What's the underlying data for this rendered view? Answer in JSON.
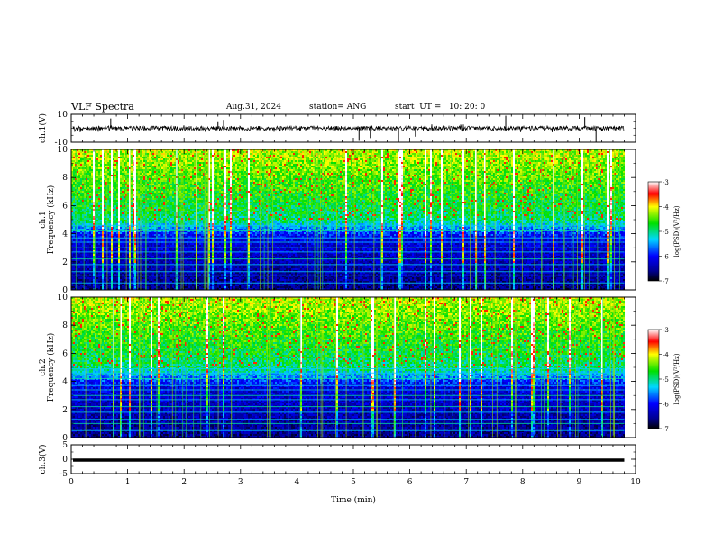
{
  "header": {
    "title": "VLF Spectra",
    "date": "Aug.31, 2024",
    "station": "station= ANG",
    "start": "start  UT =   10: 20: 0"
  },
  "chart_data": [
    {
      "type": "line",
      "panel": "ch1-waveform",
      "ylabel": "ch.1(V)",
      "ylim": [
        -10,
        10
      ],
      "yticks": [
        "10",
        "-10"
      ],
      "xlim": [
        0,
        10
      ],
      "data_extent_min": 9.8,
      "baseline": 0,
      "spikes": [
        {
          "t": 0.7,
          "v": 7
        },
        {
          "t": 2.6,
          "v": 5
        },
        {
          "t": 2.7,
          "v": 6
        },
        {
          "t": 5.1,
          "v": -9
        },
        {
          "t": 5.3,
          "v": -7
        },
        {
          "t": 5.8,
          "v": -10
        },
        {
          "t": 6.1,
          "v": -6
        },
        {
          "t": 7.7,
          "v": 9
        },
        {
          "t": 9.1,
          "v": 8
        },
        {
          "t": 9.3,
          "v": -10
        }
      ]
    },
    {
      "type": "heatmap",
      "panel": "ch1-spectrogram",
      "ylabel_top": "ch.1",
      "ylabel": "Frequency (kHz)",
      "ylim": [
        0,
        10
      ],
      "yticks": [
        "0",
        "2",
        "4",
        "6",
        "8",
        "10"
      ],
      "xlim": [
        0,
        10
      ],
      "colorbar": {
        "label": "log(PSD)(V²/Hz)",
        "range": [
          -7,
          -3
        ],
        "ticks": [
          "-3",
          "-4",
          "-5",
          "-6",
          "-7"
        ]
      },
      "horizontal_lines_khz": [
        0.5,
        1.0,
        1.3,
        1.8,
        2.2,
        2.7,
        3.0,
        3.4,
        3.7,
        4.2,
        4.6,
        4.9
      ]
    },
    {
      "type": "heatmap",
      "panel": "ch2-spectrogram",
      "ylabel_top": "ch.2",
      "ylabel": "Frequency (kHz)",
      "ylim": [
        0,
        10
      ],
      "yticks": [
        "0",
        "2",
        "4",
        "6",
        "8",
        "10"
      ],
      "xlim": [
        0,
        10
      ],
      "colorbar": {
        "label": "log(PSD)(V²/Hz)",
        "range": [
          -7,
          -3
        ],
        "ticks": [
          "-3",
          "-4",
          "-5",
          "-6",
          "-7"
        ]
      },
      "horizontal_lines_khz": [
        0.5,
        1.0,
        1.3,
        1.8,
        2.2,
        2.7,
        3.0,
        3.4,
        3.7,
        4.2,
        4.6,
        4.9
      ]
    },
    {
      "type": "line",
      "panel": "ch3-waveform",
      "ylabel": "ch.3(V)",
      "ylim": [
        -5,
        5
      ],
      "yticks": [
        "5",
        "0",
        "-5"
      ],
      "xlim": [
        0,
        10
      ],
      "xlabel": "Time (min)",
      "xticks": [
        "0",
        "1",
        "2",
        "3",
        "4",
        "5",
        "6",
        "7",
        "8",
        "9",
        "10"
      ],
      "level": 0,
      "data_extent_min": 9.8
    }
  ]
}
